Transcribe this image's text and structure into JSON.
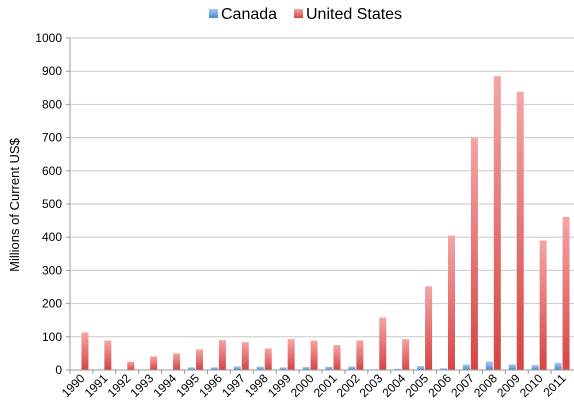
{
  "chart_data": {
    "type": "bar",
    "title": "",
    "xlabel": "",
    "ylabel": "Millions of Current US$",
    "ylim": [
      0,
      1000
    ],
    "yticks": [
      0,
      100,
      200,
      300,
      400,
      500,
      600,
      700,
      800,
      900,
      1000
    ],
    "grid": true,
    "legend_position": "top",
    "categories": [
      "1990",
      "1991",
      "1992",
      "1993",
      "1994",
      "1995",
      "1996",
      "1997",
      "1998",
      "1999",
      "2000",
      "2001",
      "2002",
      "2003",
      "2004",
      "2005",
      "2006",
      "2007",
      "2008",
      "2009",
      "2010",
      "2011"
    ],
    "series": [
      {
        "name": "Canada",
        "color": "#5b8fd6",
        "values": [
          0,
          0,
          0,
          0,
          0,
          8,
          8,
          11,
          10,
          8,
          9,
          10,
          11,
          2,
          4,
          12,
          5,
          17,
          26,
          17,
          15,
          22
        ]
      },
      {
        "name": "United States",
        "color": "#e05a5a",
        "values": [
          113,
          89,
          25,
          41,
          50,
          62,
          90,
          84,
          65,
          93,
          89,
          75,
          89,
          158,
          93,
          252,
          405,
          699,
          885,
          838,
          390,
          461
        ]
      }
    ]
  }
}
